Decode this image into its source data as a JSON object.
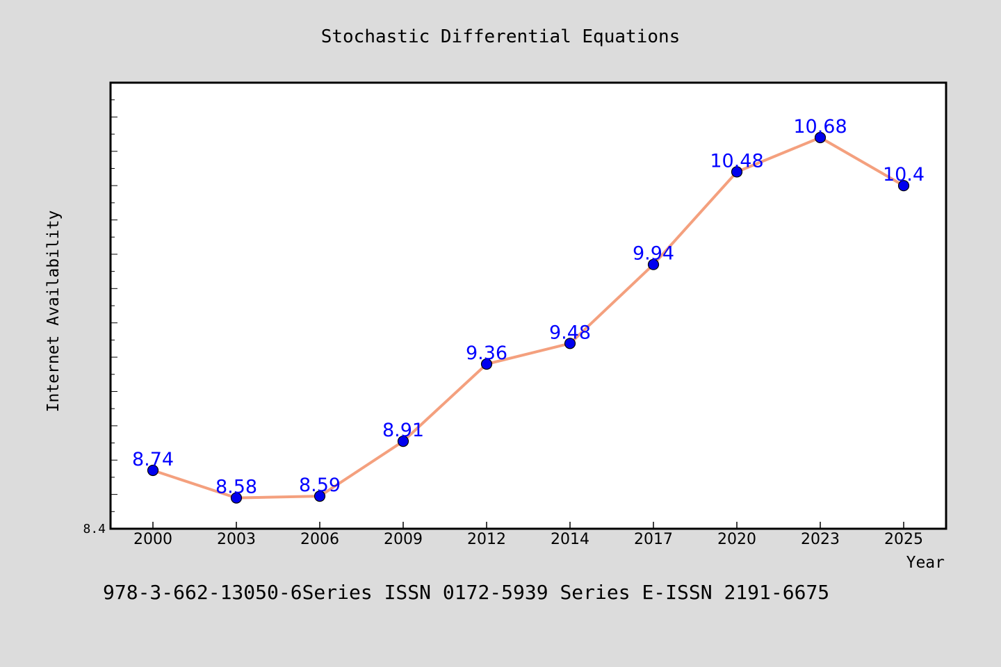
{
  "chart_data": {
    "type": "line",
    "title": "Stochastic Differential Equations",
    "xlabel": "Year",
    "ylabel": "Internet Availability",
    "categories": [
      "2000",
      "2003",
      "2006",
      "2009",
      "2012",
      "2014",
      "2017",
      "2020",
      "2023",
      "2025"
    ],
    "series": [
      {
        "values": [
          8.74,
          8.58,
          8.59,
          8.91,
          9.36,
          9.48,
          9.94,
          10.48,
          10.68,
          10.4
        ]
      }
    ],
    "data_labels": [
      "8.74",
      "8.58",
      "8.59",
      "8.91",
      "9.36",
      "9.48",
      "9.94",
      "10.48",
      "10.68",
      "10.4"
    ],
    "ylim": [
      8.4,
      11.0
    ],
    "y_tick_label": "8.4",
    "grid": false,
    "legend": "none",
    "footer": "978-3-662-13050-6Series ISSN 0172-5939 Series E-ISSN 2191-6675",
    "colors": {
      "line": "#f4a07e",
      "marker": "#0000ee",
      "data_label": "#0000ff",
      "background": "#dcdcdc",
      "plot_background": "#ffffff",
      "text": "#000000"
    }
  }
}
